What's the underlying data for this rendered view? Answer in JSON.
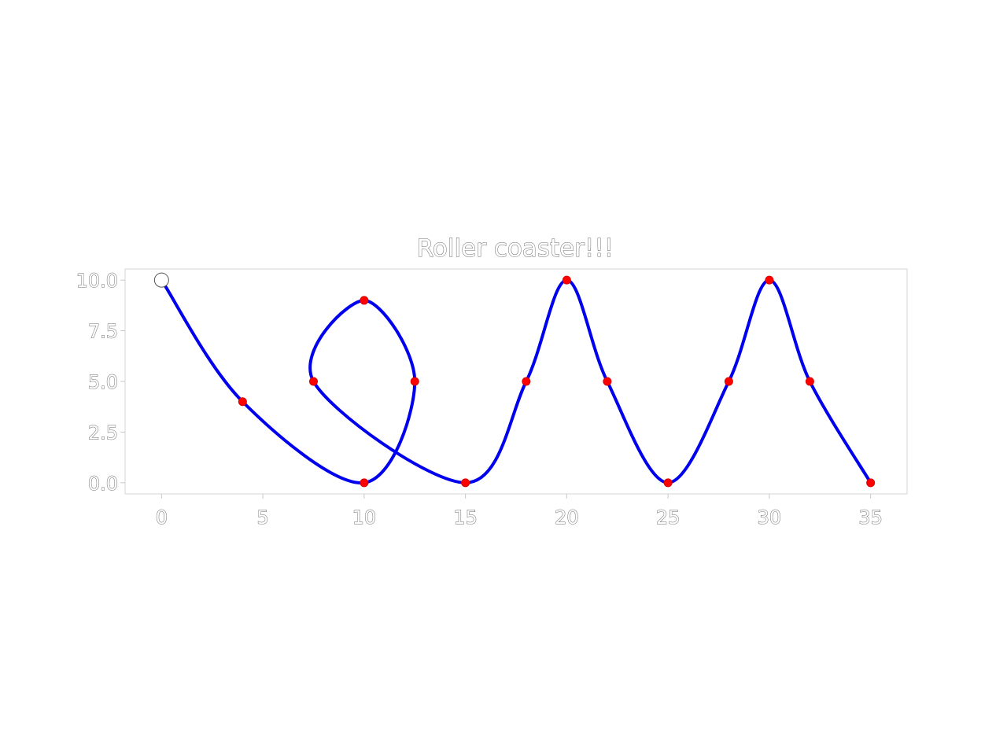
{
  "chart_data": {
    "type": "line",
    "title": "Roller coaster!!!",
    "xlabel": "",
    "ylabel": "",
    "xlim": [
      -1.8,
      36.8
    ],
    "ylim": [
      -0.55,
      10.55
    ],
    "x_ticks": [
      0,
      5,
      10,
      15,
      20,
      25,
      30,
      35
    ],
    "y_ticks": [
      0.0,
      2.5,
      5.0,
      7.5,
      10.0
    ],
    "x_tick_labels": [
      "0",
      "5",
      "10",
      "15",
      "20",
      "25",
      "30",
      "35"
    ],
    "y_tick_labels": [
      "0.0",
      "2.5",
      "5.0",
      "7.5",
      "10.0"
    ],
    "grid": false,
    "legend": "none",
    "colors": {
      "track": "#0000ee",
      "waypoints": "#ff0000",
      "start_marker": "#ffffff",
      "text_outline": "#6a6a6a",
      "frame": "#d6d6d6"
    },
    "series": [
      {
        "curve": "smooth",
        "x": [
          0,
          4,
          10,
          12.5,
          10,
          7.5,
          15,
          18,
          20,
          22,
          25,
          28,
          30,
          32,
          35
        ],
        "y": [
          10,
          4,
          0,
          5,
          9,
          5,
          0,
          5,
          10,
          5,
          0,
          5,
          10,
          5,
          0
        ]
      }
    ],
    "start_point": {
      "x": 0,
      "y": 10,
      "marker": "open-circle"
    },
    "waypoints": [
      {
        "x": 4,
        "y": 4
      },
      {
        "x": 7.5,
        "y": 5
      },
      {
        "x": 10,
        "y": 9
      },
      {
        "x": 12.5,
        "y": 5
      },
      {
        "x": 10,
        "y": 0
      },
      {
        "x": 15,
        "y": 0
      },
      {
        "x": 18,
        "y": 5
      },
      {
        "x": 20,
        "y": 10
      },
      {
        "x": 22,
        "y": 5
      },
      {
        "x": 25,
        "y": 0
      },
      {
        "x": 28,
        "y": 5
      },
      {
        "x": 30,
        "y": 10
      },
      {
        "x": 32,
        "y": 5
      },
      {
        "x": 35,
        "y": 0
      }
    ]
  }
}
